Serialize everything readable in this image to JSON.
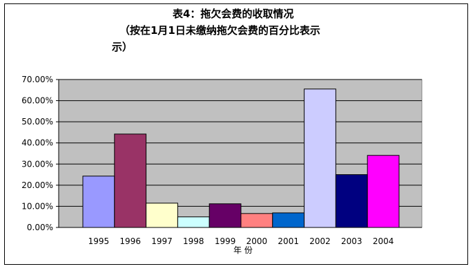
{
  "chart_data": {
    "type": "bar",
    "title": "表4：拖欠会费的收取情况",
    "subtitle": "（按在1月1日未缴纳拖欠会费的百分比表示）",
    "title_lines": [
      "表4：拖欠会费的收取情况",
      "（按在1月1日未缴纳拖欠会费的百分比表示",
      "示）"
    ],
    "xlabel": "年  份",
    "ylabel": "",
    "categories": [
      "1995",
      "1996",
      "1997",
      "1998",
      "1999",
      "2000",
      "2001",
      "2002",
      "2003",
      "2004"
    ],
    "values": [
      24.3,
      44.2,
      11.5,
      5.0,
      11.2,
      6.6,
      6.9,
      65.5,
      25.0,
      34.1
    ],
    "ylim": [
      0,
      70
    ],
    "ytick_labels": [
      "0.00%",
      "10.00%",
      "20.00%",
      "30.00%",
      "40.00%",
      "50.00%",
      "60.00%",
      "70.00%"
    ],
    "grid": true,
    "legend": "none",
    "plot_background": "#C0C0C0",
    "bar_colors": [
      "#9999FF",
      "#993366",
      "#FFFFCC",
      "#CCFFFF",
      "#660066",
      "#FF8080",
      "#0066CC",
      "#CCCCFF",
      "#000080",
      "#FF00FF"
    ]
  }
}
